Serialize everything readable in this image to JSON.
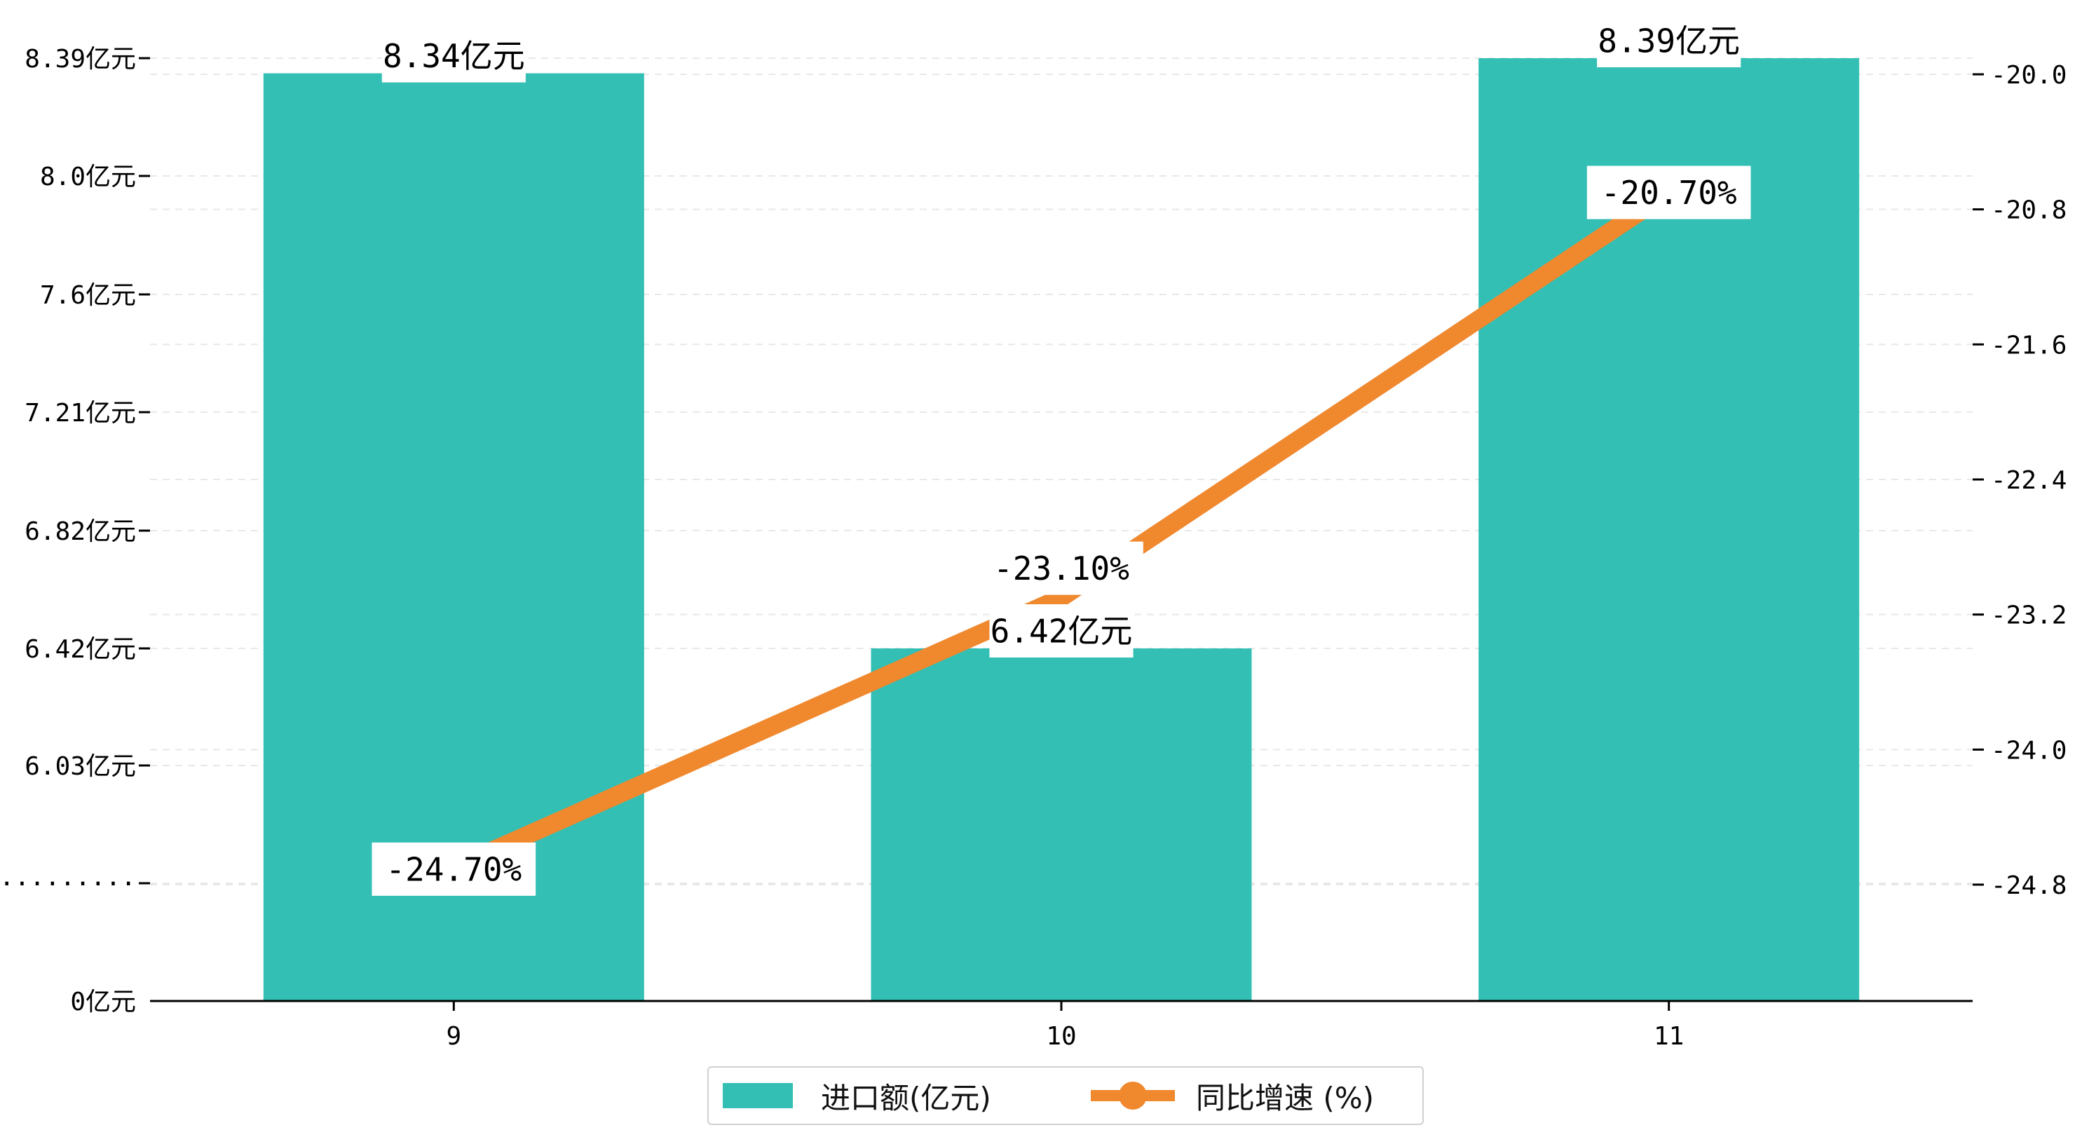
{
  "chart_data": {
    "type": "bar+line",
    "categories": [
      "9",
      "10",
      "11"
    ],
    "series": [
      {
        "name": "进口额(亿元)",
        "type": "bar",
        "axis": "left",
        "values": [
          8.34,
          6.42,
          8.39
        ],
        "labels": [
          "8.34亿元",
          "6.42亿元",
          "8.39亿元"
        ]
      },
      {
        "name": "同比增速 (%)",
        "type": "line",
        "axis": "right",
        "values": [
          -24.7,
          -23.1,
          -20.7
        ],
        "labels": [
          "-24.70%",
          "-23.10%",
          "-20.70%"
        ]
      }
    ],
    "left_axis": {
      "tick_values": [
        0,
        5.64,
        6.03,
        6.42,
        6.82,
        7.21,
        7.6,
        8.0,
        8.39
      ],
      "tick_labels": [
        "0亿元",
        "·········",
        "6.03亿元",
        "6.42亿元",
        "6.82亿元",
        "7.21亿元",
        "7.6亿元",
        "8.0亿元",
        "8.39亿元"
      ],
      "broken": true
    },
    "right_axis": {
      "ticks": [
        -20.0,
        -20.8,
        -21.6,
        -22.4,
        -23.2,
        -24.0,
        -24.8
      ],
      "tick_labels": [
        "-20.0",
        "-20.8",
        "-21.6",
        "-22.4",
        "-23.2",
        "-24.0",
        "-24.8"
      ],
      "range": [
        -25.7,
        -19.9
      ]
    },
    "grid": "horizontal dashed",
    "legend_position": "bottom-center"
  },
  "colors": {
    "bar": "#33bfb4",
    "line": "#f0882e",
    "axis": "#000000",
    "grid": "#e8e8e8"
  }
}
